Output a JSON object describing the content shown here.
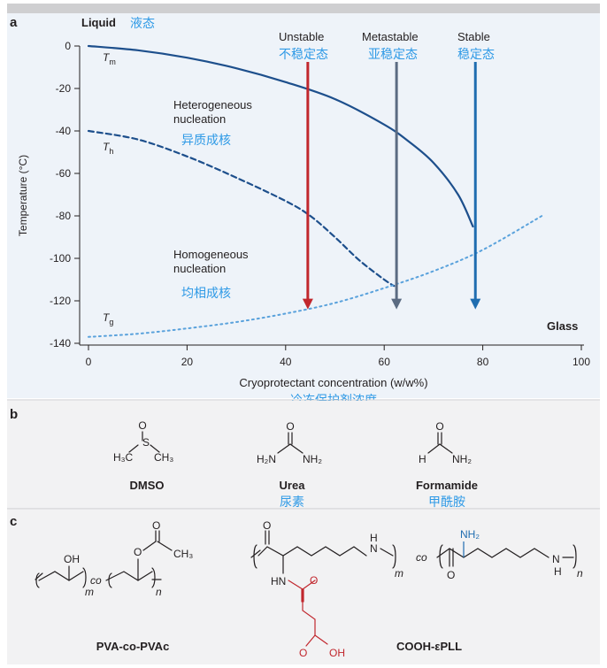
{
  "colors": {
    "top_bar": "#cfcfd1",
    "chart_bg": "#eef3f9",
    "panel_bg": "#f2f2f3",
    "dark_blue": "#1d4f8c",
    "mid_blue": "#1f6db0",
    "dotted_blue": "#5aa2dc",
    "red": "#c1272d",
    "slate": "#5b6b82",
    "annot_blue": "#2f9ae6"
  },
  "panel_a": {
    "letter": "a",
    "liquid_label": "Liquid",
    "liquid_cn": "液态",
    "glass_label": "Glass",
    "heterogeneous_label_1": "Heterogeneous",
    "heterogeneous_label_2": "nucleation",
    "heterogeneous_cn": "异质成核",
    "homogeneous_label_1": "Homogeneous",
    "homogeneous_label_2": "nucleation",
    "homogeneous_cn": "均相成核",
    "arrows": [
      {
        "label": "Unstable",
        "cn": "不稳定态",
        "x": 44.5,
        "y_to": -124,
        "color": "#c1272d"
      },
      {
        "label": "Metastable",
        "cn": "亚稳定态",
        "x": 62.5,
        "y_to": -124,
        "color": "#5b6b82"
      },
      {
        "label": "Stable",
        "cn": "稳定态",
        "x": 78.5,
        "y_to": -124,
        "color": "#1f6db0"
      }
    ],
    "xlabel_cn": "冷冻保护剂浓度"
  },
  "chart_data": {
    "type": "line",
    "title": "",
    "xlabel": "Cryoprotectant concentration (w/w%)",
    "ylabel": "Temperature (°C)",
    "xlim": [
      0,
      100
    ],
    "ylim": [
      -140,
      0
    ],
    "xticks": [
      0,
      20,
      40,
      60,
      80,
      100
    ],
    "yticks": [
      0,
      -20,
      -40,
      -60,
      -80,
      -100,
      -120,
      -140
    ],
    "series": [
      {
        "name": "T_m",
        "label_main": "T",
        "label_sub": "m",
        "style": "solid",
        "color": "#1d4f8c",
        "x": [
          0,
          10,
          20,
          30,
          40,
          50,
          60,
          65,
          70,
          75,
          78
        ],
        "y": [
          0,
          -2,
          -5.5,
          -10.5,
          -17,
          -25,
          -37,
          -45,
          -55,
          -70,
          -85
        ]
      },
      {
        "name": "T_h",
        "label_main": "T",
        "label_sub": "h",
        "style": "dashed",
        "color": "#1d4f8c",
        "x": [
          0,
          10,
          20,
          30,
          40,
          45,
          50,
          55,
          60,
          62
        ],
        "y": [
          -40,
          -44,
          -52,
          -62,
          -73,
          -80,
          -90,
          -101,
          -110,
          -113
        ]
      },
      {
        "name": "T_g",
        "label_main": "T",
        "label_sub": "g",
        "style": "dotted",
        "color": "#5aa2dc",
        "x": [
          0,
          10,
          20,
          30,
          40,
          50,
          60,
          70,
          80,
          92
        ],
        "y": [
          -137,
          -135.5,
          -133,
          -130,
          -126,
          -121,
          -114,
          -106,
          -96,
          -80
        ]
      }
    ]
  },
  "panel_b": {
    "letter": "b",
    "molecules": [
      {
        "name": "DMSO",
        "cn": "",
        "atoms": {
          "o": "O",
          "s": "S",
          "left": "H₃C",
          "right": "CH₃"
        }
      },
      {
        "name": "Urea",
        "cn": "尿素",
        "atoms": {
          "o": "O",
          "left": "H₂N",
          "right": "NH₂"
        }
      },
      {
        "name": "Formamide",
        "cn": "甲酰胺",
        "atoms": {
          "o": "O",
          "h": "H",
          "n": "NH₂"
        }
      }
    ]
  },
  "panel_c": {
    "letter": "c",
    "pva": {
      "name": "PVA-co-PVAc",
      "oh": "OH",
      "o": "O",
      "ch3": "CH₃",
      "co": "co",
      "m": "m",
      "n": "n"
    },
    "pll": {
      "name": "COOH-εPLL",
      "hn": "HN",
      "nh2": "NH₂",
      "n_h": "N",
      "h": "H",
      "o": "O",
      "oh": "OH",
      "co": "co",
      "m": "m",
      "n": "n"
    }
  }
}
